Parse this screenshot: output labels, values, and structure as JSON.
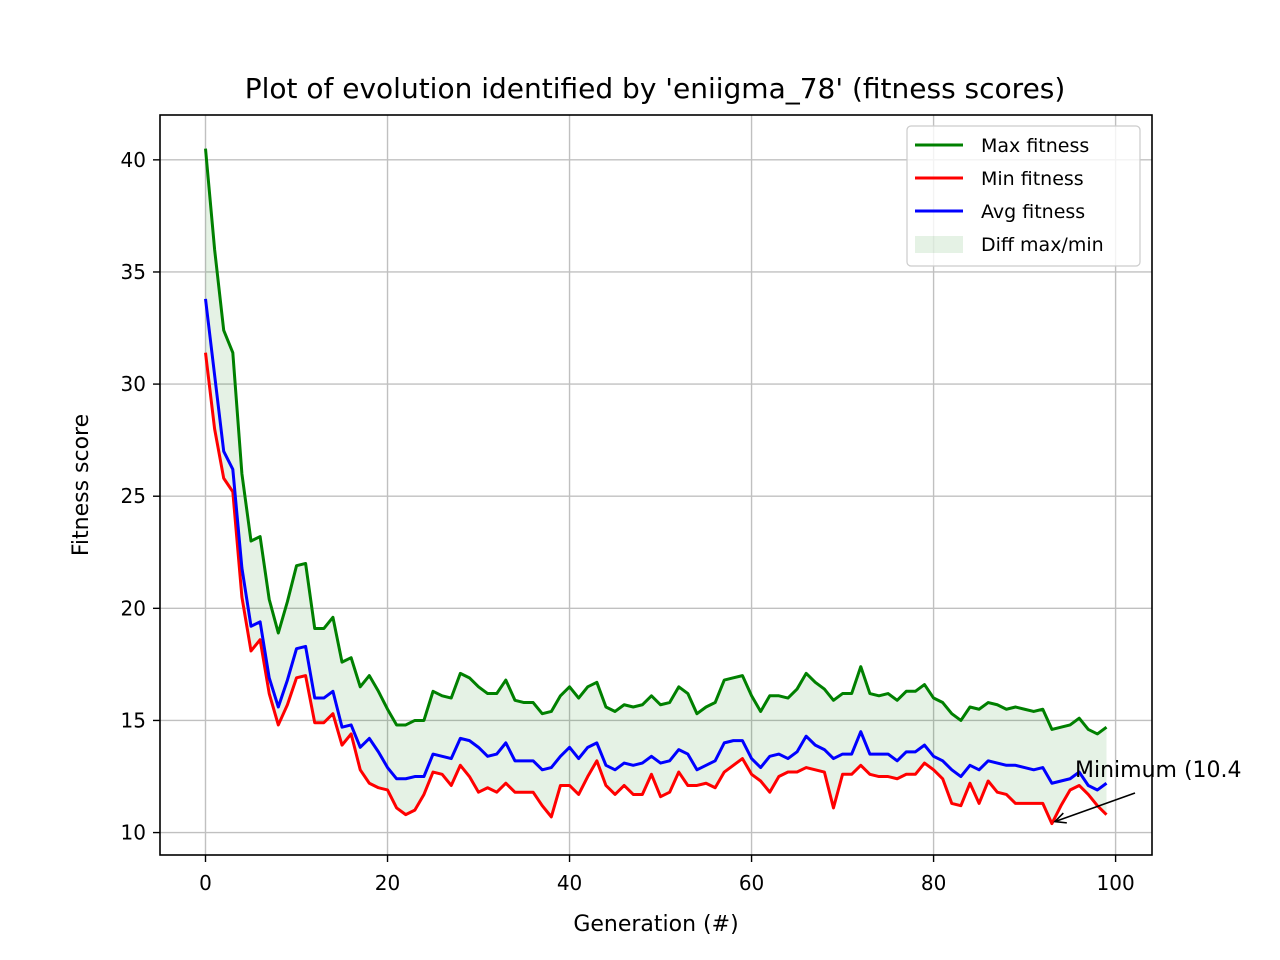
{
  "chart_data": {
    "type": "line",
    "title": "Plot of evolution identified by 'eniigma_78' (fitness scores)",
    "xlabel": "Generation (#)",
    "ylabel": "Fitness score",
    "xlim": [
      -5,
      104
    ],
    "ylim": [
      9.0,
      42.0
    ],
    "xticks": [
      0,
      20,
      40,
      60,
      80,
      100
    ],
    "yticks": [
      10,
      15,
      20,
      25,
      30,
      35,
      40
    ],
    "grid": true,
    "legend_position": "top-right",
    "x": [
      0,
      1,
      2,
      3,
      4,
      5,
      6,
      7,
      8,
      9,
      10,
      11,
      12,
      13,
      14,
      15,
      16,
      17,
      18,
      19,
      20,
      21,
      22,
      23,
      24,
      25,
      26,
      27,
      28,
      29,
      30,
      31,
      32,
      33,
      34,
      35,
      36,
      37,
      38,
      39,
      40,
      41,
      42,
      43,
      44,
      45,
      46,
      47,
      48,
      49,
      50,
      51,
      52,
      53,
      54,
      55,
      56,
      57,
      58,
      59,
      60,
      61,
      62,
      63,
      64,
      65,
      66,
      67,
      68,
      69,
      70,
      71,
      72,
      73,
      74,
      75,
      76,
      77,
      78,
      79,
      80,
      81,
      82,
      83,
      84,
      85,
      86,
      87,
      88,
      89,
      90,
      91,
      92,
      93,
      94,
      95,
      96,
      97,
      98,
      99
    ],
    "series": [
      {
        "name": "Max fitness",
        "color": "#008000",
        "values": [
          40.5,
          36.0,
          32.4,
          31.4,
          26.0,
          23.0,
          23.2,
          20.4,
          18.9,
          20.3,
          21.9,
          22.0,
          19.1,
          19.1,
          19.6,
          17.6,
          17.8,
          16.5,
          17.0,
          16.3,
          15.5,
          14.8,
          14.8,
          15.0,
          15.0,
          16.3,
          16.1,
          16.0,
          17.1,
          16.9,
          16.5,
          16.2,
          16.2,
          16.8,
          15.9,
          15.8,
          15.8,
          15.3,
          15.4,
          16.1,
          16.5,
          16.0,
          16.5,
          16.7,
          15.6,
          15.4,
          15.7,
          15.6,
          15.7,
          16.1,
          15.7,
          15.8,
          16.5,
          16.2,
          15.3,
          15.6,
          15.8,
          16.8,
          16.9,
          17.0,
          16.1,
          15.4,
          16.1,
          16.1,
          16.0,
          16.4,
          17.1,
          16.7,
          16.4,
          15.9,
          16.2,
          16.2,
          17.4,
          16.2,
          16.1,
          16.2,
          15.9,
          16.3,
          16.3,
          16.6,
          16.0,
          15.8,
          15.3,
          15.0,
          15.6,
          15.5,
          15.8,
          15.7,
          15.5,
          15.6,
          15.5,
          15.4,
          15.5,
          14.6,
          14.7,
          14.8,
          15.1,
          14.6,
          14.4,
          14.7
        ]
      },
      {
        "name": "Min fitness",
        "color": "#ff0000",
        "values": [
          31.4,
          28.0,
          25.8,
          25.2,
          20.5,
          18.1,
          18.6,
          16.2,
          14.8,
          15.7,
          16.9,
          17.0,
          14.9,
          14.9,
          15.3,
          13.9,
          14.4,
          12.8,
          12.2,
          12.0,
          11.9,
          11.1,
          10.8,
          11.0,
          11.7,
          12.7,
          12.6,
          12.1,
          13.0,
          12.5,
          11.8,
          12.0,
          11.8,
          12.2,
          11.8,
          11.8,
          11.8,
          11.2,
          10.7,
          12.1,
          12.1,
          11.7,
          12.5,
          13.2,
          12.1,
          11.7,
          12.1,
          11.7,
          11.7,
          12.6,
          11.6,
          11.8,
          12.7,
          12.1,
          12.1,
          12.2,
          12.0,
          12.7,
          13.0,
          13.3,
          12.6,
          12.3,
          11.8,
          12.5,
          12.7,
          12.7,
          12.9,
          12.8,
          12.7,
          11.1,
          12.6,
          12.6,
          13.0,
          12.6,
          12.5,
          12.5,
          12.4,
          12.6,
          12.6,
          13.1,
          12.8,
          12.4,
          11.3,
          11.2,
          12.2,
          11.3,
          12.3,
          11.8,
          11.7,
          11.3,
          11.3,
          11.3,
          11.3,
          10.4,
          11.2,
          11.9,
          12.1,
          11.7,
          11.2,
          10.8
        ]
      },
      {
        "name": "Avg fitness",
        "color": "#0000ff",
        "values": [
          33.8,
          30.4,
          27.0,
          26.2,
          21.8,
          19.2,
          19.4,
          16.9,
          15.6,
          16.8,
          18.2,
          18.3,
          16.0,
          16.0,
          16.3,
          14.7,
          14.8,
          13.8,
          14.2,
          13.6,
          12.9,
          12.4,
          12.4,
          12.5,
          12.5,
          13.5,
          13.4,
          13.3,
          14.2,
          14.1,
          13.8,
          13.4,
          13.5,
          14.0,
          13.2,
          13.2,
          13.2,
          12.8,
          12.9,
          13.4,
          13.8,
          13.3,
          13.8,
          14.0,
          13.0,
          12.8,
          13.1,
          13.0,
          13.1,
          13.4,
          13.1,
          13.2,
          13.7,
          13.5,
          12.8,
          13.0,
          13.2,
          14.0,
          14.1,
          14.1,
          13.3,
          12.9,
          13.4,
          13.5,
          13.3,
          13.6,
          14.3,
          13.9,
          13.7,
          13.3,
          13.5,
          13.5,
          14.5,
          13.5,
          13.5,
          13.5,
          13.2,
          13.6,
          13.6,
          13.9,
          13.4,
          13.2,
          12.8,
          12.5,
          13.0,
          12.8,
          13.2,
          13.1,
          13.0,
          13.0,
          12.9,
          12.8,
          12.9,
          12.2,
          12.3,
          12.4,
          12.7,
          12.1,
          11.9,
          12.2
        ]
      }
    ],
    "fill": {
      "name": "Diff max/min",
      "color": "#008000",
      "opacity": 0.1,
      "between": [
        "Max fitness",
        "Min fitness"
      ]
    },
    "annotation": {
      "text": "Minimum (10.4",
      "point": [
        93,
        10.4
      ]
    }
  }
}
